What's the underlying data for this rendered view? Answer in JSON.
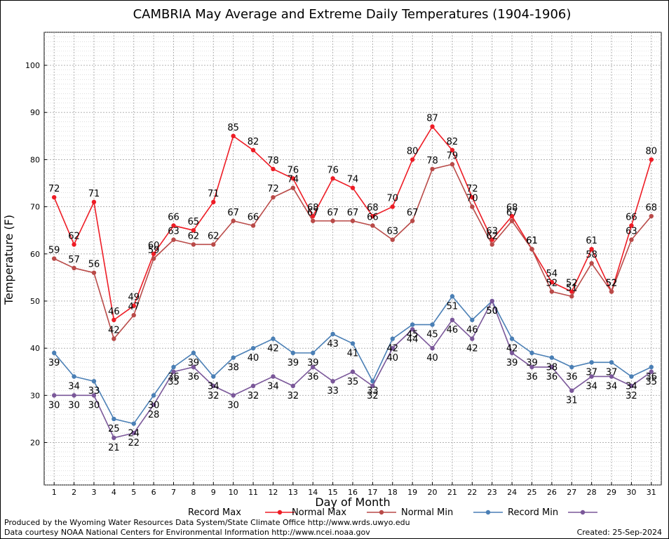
{
  "chart_data": {
    "type": "line",
    "title": "CAMBRIA May Average and Extreme Daily Temperatures (1904-1906)",
    "xlabel": "Day of Month",
    "ylabel": "Temperature (F)",
    "x": [
      1,
      2,
      3,
      4,
      5,
      6,
      7,
      8,
      9,
      10,
      11,
      12,
      13,
      14,
      15,
      16,
      17,
      18,
      19,
      20,
      21,
      22,
      23,
      24,
      25,
      26,
      27,
      28,
      29,
      30,
      31
    ],
    "xlim": [
      0.5,
      31.5
    ],
    "ylim": [
      11,
      107
    ],
    "y_ticks": [
      20,
      30,
      40,
      50,
      60,
      70,
      80,
      90,
      100
    ],
    "grid": true,
    "legend_position": "bottom",
    "series": [
      {
        "name": "Record Max",
        "color": "#ee1c25",
        "values": [
          72,
          62,
          71,
          46,
          49,
          60,
          66,
          65,
          71,
          85,
          82,
          78,
          76,
          68,
          76,
          74,
          68,
          70,
          80,
          87,
          82,
          72,
          63,
          68,
          61,
          54,
          52,
          61,
          52,
          66,
          80
        ]
      },
      {
        "name": "Normal Max",
        "color": "#b94a48",
        "values": [
          59,
          57,
          56,
          42,
          47,
          59,
          63,
          62,
          62,
          67,
          66,
          72,
          74,
          67,
          67,
          67,
          66,
          63,
          67,
          78,
          79,
          70,
          62,
          67,
          61,
          52,
          51,
          58,
          52,
          63,
          68
        ]
      },
      {
        "name": "Normal Min",
        "color": "#4a7fb5",
        "values": [
          39,
          34,
          33,
          25,
          24,
          30,
          36,
          39,
          34,
          38,
          40,
          42,
          39,
          39,
          43,
          41,
          33,
          42,
          45,
          45,
          51,
          46,
          50,
          42,
          39,
          38,
          36,
          37,
          37,
          34,
          36
        ]
      },
      {
        "name": "Record Min",
        "color": "#7a5799",
        "values": [
          30,
          30,
          30,
          21,
          22,
          28,
          35,
          36,
          32,
          30,
          32,
          34,
          32,
          36,
          33,
          35,
          32,
          40,
          44,
          40,
          46,
          42,
          50,
          39,
          36,
          36,
          31,
          34,
          34,
          32,
          35
        ]
      }
    ]
  },
  "footer": {
    "produced_by": "Produced by the Wyoming Water Resources Data System/State Climate Office http://www.wrds.uwyo.edu",
    "data_courtesy": "Data courtesy NOAA National Centers for Environmental Information http://www.ncei.noaa.gov",
    "created": "Created:  25-Sep-2024"
  }
}
